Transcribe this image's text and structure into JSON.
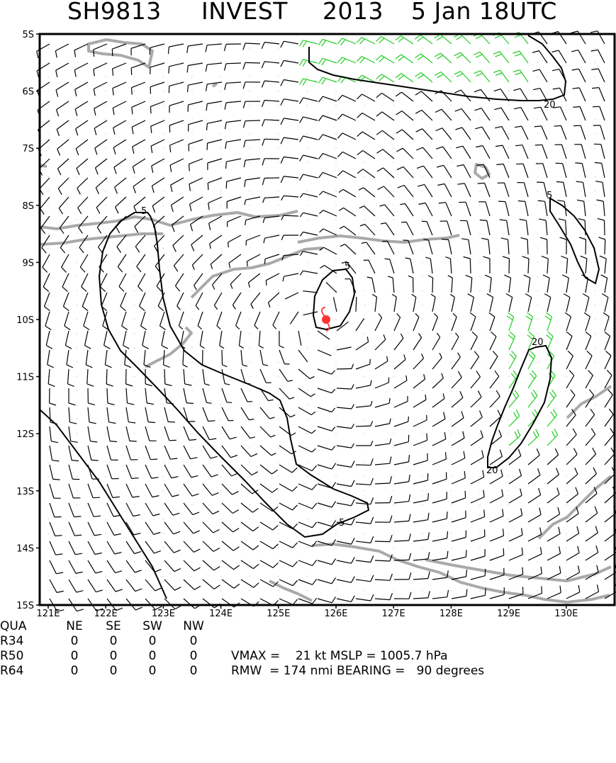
{
  "title": {
    "storm_id": "SH9813",
    "name": "INVEST",
    "year": "2013",
    "date": "5 Jan 18UTC"
  },
  "map": {
    "lat_labels": [
      "5S",
      "6S",
      "7S",
      "8S",
      "9S",
      "10S",
      "11S",
      "12S",
      "13S",
      "14S",
      "15S"
    ],
    "lon_labels": [
      "121E",
      "122E",
      "123E",
      "124E",
      "125E",
      "126E",
      "127E",
      "128E",
      "129E",
      "130E"
    ],
    "lat_range": [
      -15,
      -5
    ],
    "lon_range": [
      121,
      130.9
    ],
    "storm_center": {
      "lat": -10.0,
      "lon": 125.9
    },
    "contour_labels": [
      "5",
      "5",
      "5",
      "5",
      "20",
      "20",
      "20"
    ],
    "colors": {
      "barb": "#000000",
      "barb_strong": "#22cc22",
      "coastline": "#a9a9a9",
      "contour": "#000000",
      "storm_symbol": "#ff3333"
    },
    "storm_icon": "tropical-storm-icon"
  },
  "radii_table": {
    "headers": [
      "QUA",
      "NE",
      "SE",
      "SW",
      "NW"
    ],
    "rows": [
      {
        "label": "R34",
        "values": [
          "0",
          "0",
          "0",
          "0"
        ]
      },
      {
        "label": "R50",
        "values": [
          "0",
          "0",
          "0",
          "0"
        ]
      },
      {
        "label": "R64",
        "values": [
          "0",
          "0",
          "0",
          "0"
        ]
      }
    ]
  },
  "stats": {
    "line1": "VMAX =    21 kt MSLP = 1005.7 hPa",
    "line2": "RMW  = 174 nmi BEARING =   90 degrees"
  }
}
